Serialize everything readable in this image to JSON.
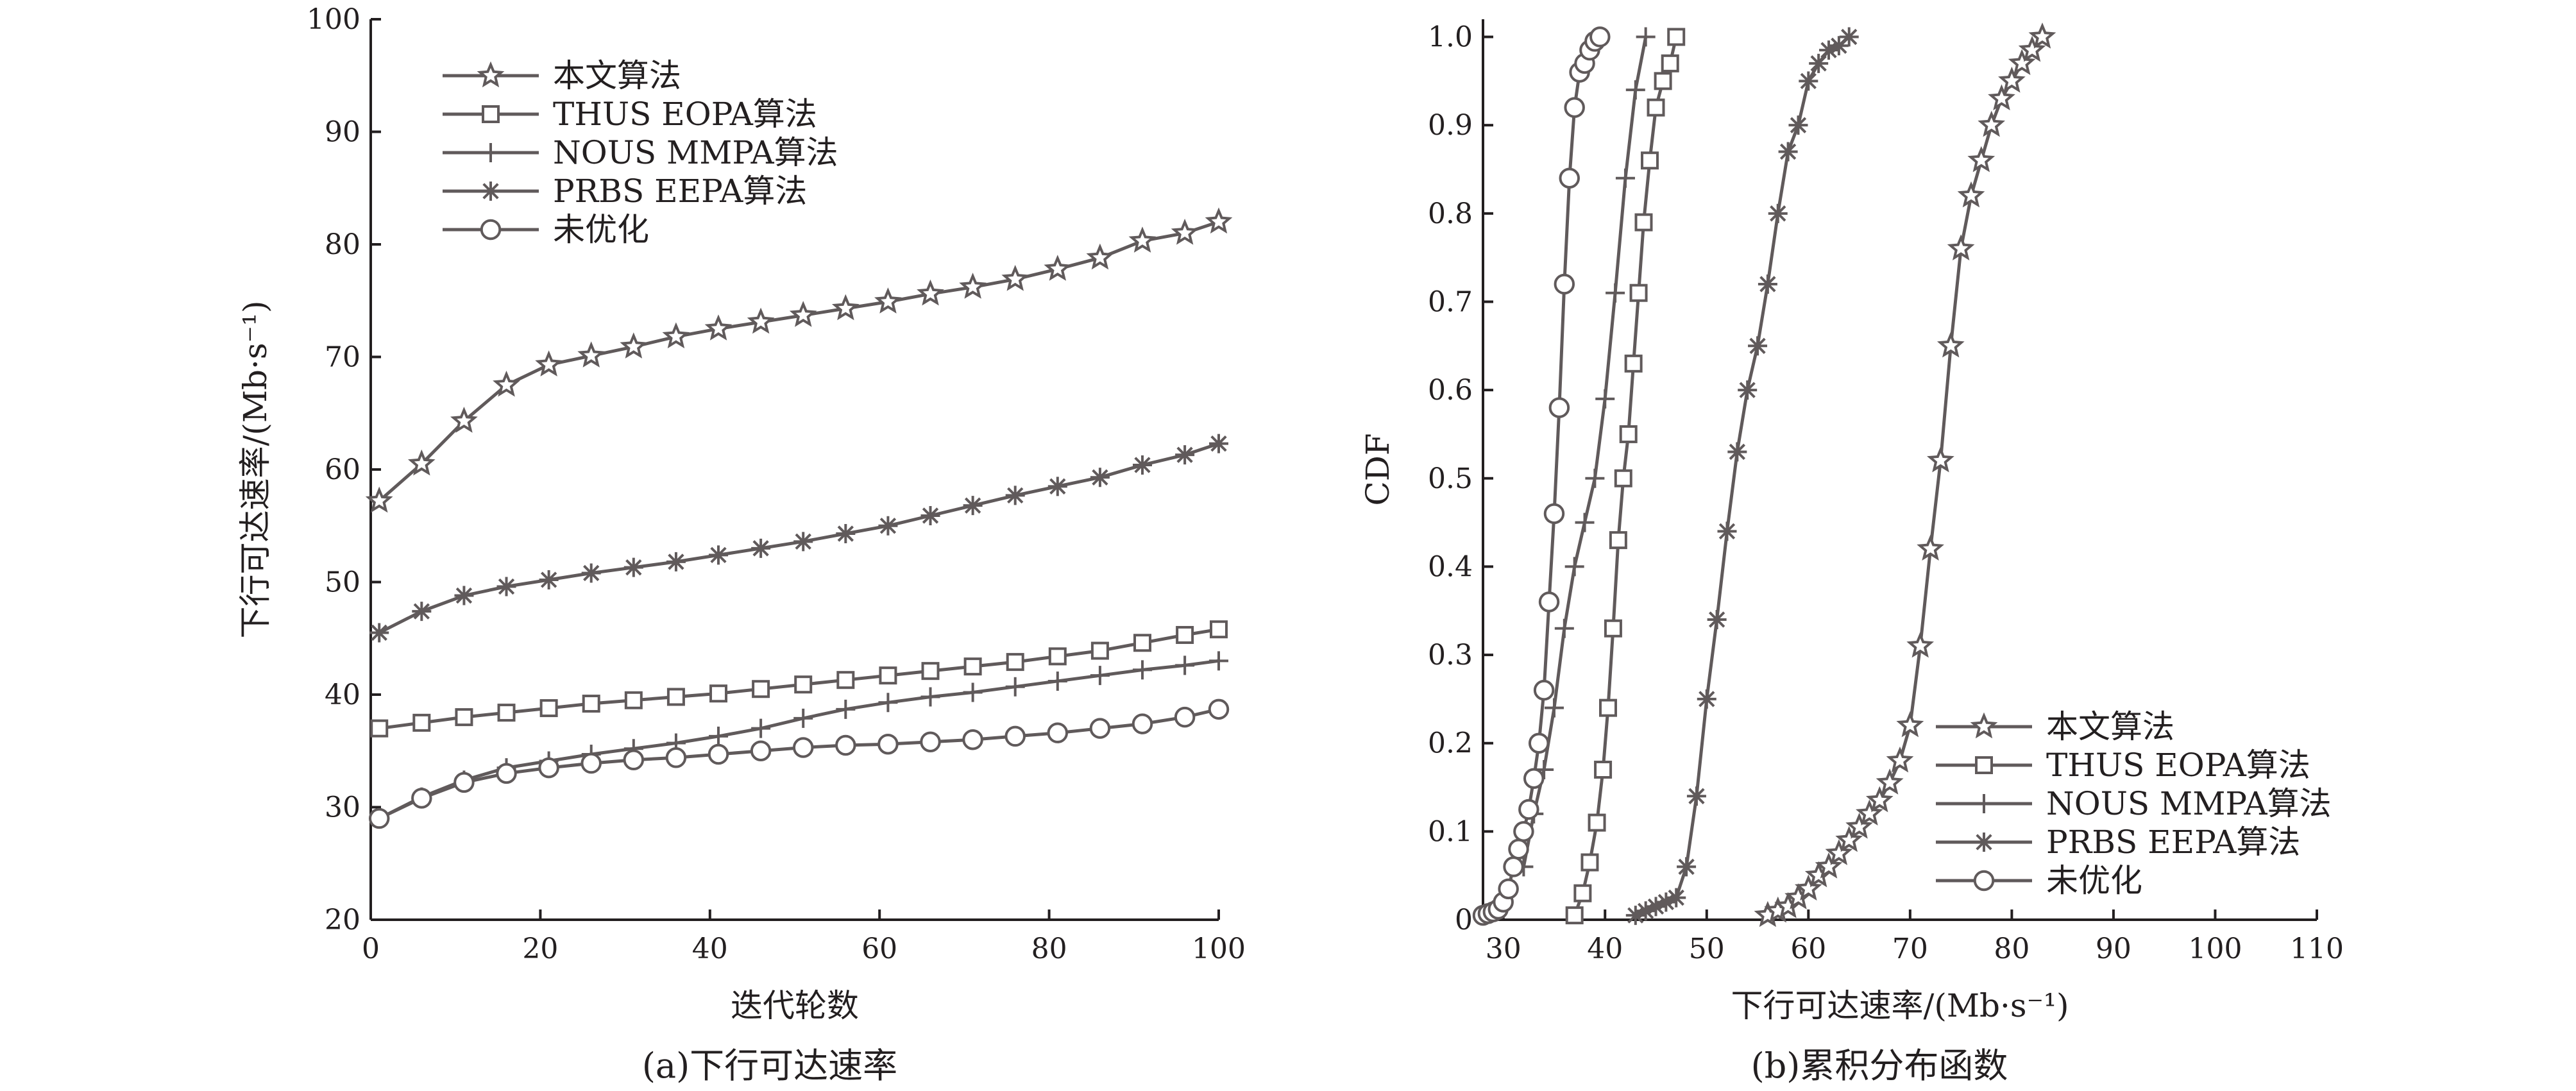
{
  "chart_data": [
    {
      "type": "line",
      "caption": "(a)下行可达速率",
      "xlabel": "迭代轮数",
      "ylabel": "下行可达速率/(Mb·s⁻¹)",
      "xlim": [
        0,
        100
      ],
      "ylim": [
        20,
        100
      ],
      "xticks": [
        0,
        20,
        40,
        60,
        80,
        100
      ],
      "yticks": [
        20,
        30,
        40,
        50,
        60,
        70,
        80,
        90,
        100
      ],
      "grid": false,
      "legend": "top-left",
      "x": [
        1,
        6,
        11,
        16,
        21,
        26,
        31,
        36,
        41,
        46,
        51,
        56,
        61,
        66,
        71,
        76,
        81,
        86,
        91,
        96,
        100
      ],
      "series": [
        {
          "name": "本文算法",
          "marker": "star",
          "values": [
            57.2,
            60.5,
            64.3,
            67.5,
            69.3,
            70.1,
            70.9,
            71.8,
            72.5,
            73.1,
            73.7,
            74.3,
            74.9,
            75.6,
            76.2,
            76.9,
            77.8,
            78.8,
            80.3,
            81.0,
            82.0
          ]
        },
        {
          "name": "THUS EOPA算法",
          "marker": "square",
          "values": [
            37.0,
            37.5,
            38.0,
            38.4,
            38.8,
            39.2,
            39.5,
            39.8,
            40.1,
            40.5,
            40.9,
            41.3,
            41.7,
            42.1,
            42.5,
            42.9,
            43.4,
            43.9,
            44.6,
            45.3,
            45.8
          ]
        },
        {
          "name": "NOUS MMPA算法",
          "marker": "plus",
          "values": [
            29.0,
            30.9,
            32.4,
            33.5,
            34.1,
            34.7,
            35.2,
            35.7,
            36.3,
            37.0,
            37.9,
            38.7,
            39.3,
            39.8,
            40.2,
            40.7,
            41.2,
            41.7,
            42.2,
            42.6,
            43.0
          ]
        },
        {
          "name": "PRBS EEPA算法",
          "marker": "asterisk",
          "values": [
            45.5,
            47.4,
            48.8,
            49.6,
            50.2,
            50.8,
            51.3,
            51.8,
            52.4,
            53.0,
            53.6,
            54.3,
            55.0,
            55.9,
            56.8,
            57.7,
            58.5,
            59.3,
            60.4,
            61.3,
            62.3
          ]
        },
        {
          "name": "未优化",
          "marker": "circle",
          "values": [
            29.0,
            30.8,
            32.2,
            33.0,
            33.5,
            33.9,
            34.2,
            34.4,
            34.7,
            35.0,
            35.3,
            35.5,
            35.6,
            35.8,
            36.0,
            36.3,
            36.6,
            37.0,
            37.4,
            38.0,
            38.7
          ]
        }
      ]
    },
    {
      "type": "line",
      "caption": "(b)累积分布函数",
      "xlabel": "下行可达速率/(Mb·s⁻¹)",
      "ylabel": "CDF",
      "xlim": [
        28,
        110
      ],
      "ylim": [
        0,
        1.02
      ],
      "xticks": [
        30,
        40,
        50,
        60,
        70,
        80,
        90,
        100,
        110
      ],
      "yticks": [
        0,
        0.1,
        0.2,
        0.3,
        0.4,
        0.5,
        0.6,
        0.7,
        0.8,
        0.9,
        1.0
      ],
      "ytick_labels": [
        "0",
        "0.1",
        "0.2",
        "0.3",
        "0.4",
        "0.5",
        "0.6",
        "0.7",
        "0.8",
        "0.9",
        "1.0"
      ],
      "grid": false,
      "legend": "bottom-right",
      "series": [
        {
          "name": "本文算法",
          "marker": "star",
          "x": [
            56,
            57,
            58,
            59,
            60,
            61,
            62,
            63,
            64,
            65,
            66,
            67,
            68,
            69,
            70,
            71,
            72,
            73,
            74,
            75,
            76,
            77,
            78,
            79,
            80,
            81,
            82,
            83
          ],
          "y": [
            0.005,
            0.01,
            0.015,
            0.025,
            0.035,
            0.05,
            0.06,
            0.075,
            0.09,
            0.105,
            0.12,
            0.135,
            0.155,
            0.18,
            0.22,
            0.31,
            0.42,
            0.52,
            0.65,
            0.76,
            0.82,
            0.86,
            0.9,
            0.93,
            0.95,
            0.97,
            0.985,
            1.0
          ]
        },
        {
          "name": "THUS EOPA算法",
          "marker": "square",
          "x": [
            37,
            37.8,
            38.5,
            39.2,
            39.8,
            40.3,
            40.8,
            41.3,
            41.8,
            42.3,
            42.8,
            43.3,
            43.8,
            44.4,
            45,
            45.7,
            46.4,
            47
          ],
          "y": [
            0.005,
            0.03,
            0.065,
            0.11,
            0.17,
            0.24,
            0.33,
            0.43,
            0.5,
            0.55,
            0.63,
            0.71,
            0.79,
            0.86,
            0.92,
            0.95,
            0.97,
            1.0
          ]
        },
        {
          "name": "NOUS MMPA算法",
          "marker": "plus",
          "x": [
            32,
            33,
            34,
            35,
            36,
            37,
            38,
            39,
            40,
            41,
            42,
            43,
            44
          ],
          "y": [
            0.06,
            0.12,
            0.17,
            0.24,
            0.33,
            0.4,
            0.45,
            0.5,
            0.59,
            0.71,
            0.84,
            0.94,
            1.0
          ]
        },
        {
          "name": "PRBS EEPA算法",
          "marker": "asterisk",
          "x": [
            43,
            44,
            45,
            46,
            47,
            48,
            49,
            50,
            51,
            52,
            53,
            54,
            55,
            56,
            57,
            58,
            59,
            60,
            61,
            62,
            63,
            64
          ],
          "y": [
            0.005,
            0.01,
            0.015,
            0.02,
            0.025,
            0.06,
            0.14,
            0.25,
            0.34,
            0.44,
            0.53,
            0.6,
            0.65,
            0.72,
            0.8,
            0.87,
            0.9,
            0.95,
            0.97,
            0.985,
            0.99,
            1.0
          ]
        },
        {
          "name": "未优化",
          "marker": "circle",
          "x": [
            28,
            28.5,
            29,
            29.5,
            30,
            30.5,
            31,
            31.5,
            32,
            32.5,
            33,
            33.5,
            34,
            34.5,
            35,
            35.5,
            36,
            36.5,
            37,
            37.5,
            38,
            38.5,
            39,
            39.5
          ],
          "y": [
            0.005,
            0.007,
            0.009,
            0.012,
            0.02,
            0.035,
            0.06,
            0.08,
            0.1,
            0.125,
            0.16,
            0.2,
            0.26,
            0.36,
            0.46,
            0.58,
            0.72,
            0.84,
            0.92,
            0.96,
            0.97,
            0.985,
            0.995,
            1.0
          ]
        }
      ]
    }
  ]
}
